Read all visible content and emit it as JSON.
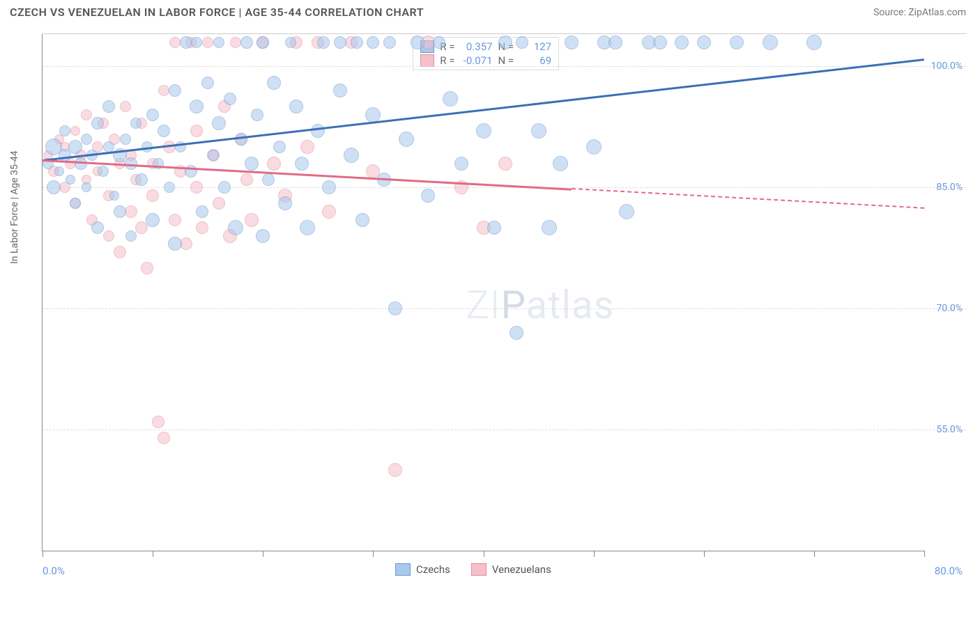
{
  "header": {
    "title": "CZECH VS VENEZUELAN IN LABOR FORCE | AGE 35-44 CORRELATION CHART",
    "source": "Source: ZipAtlas.com"
  },
  "chart": {
    "type": "scatter",
    "y_axis_title": "In Labor Force | Age 35-44",
    "xlim": [
      0,
      80
    ],
    "ylim": [
      40,
      104
    ],
    "x_tick_positions": [
      0,
      10,
      20,
      30,
      40,
      50,
      60,
      70,
      80
    ],
    "x_label_min": "0.0%",
    "x_label_max": "80.0%",
    "y_gridlines": [
      {
        "value": 100,
        "label": "100.0%"
      },
      {
        "value": 85,
        "label": "85.0%"
      },
      {
        "value": 70,
        "label": "70.0%"
      },
      {
        "value": 55,
        "label": "55.0%"
      }
    ],
    "background_color": "#ffffff",
    "grid_color": "#dddddd",
    "axis_color": "#888888",
    "tick_label_color": "#6699dd",
    "watermark": "ZIPatlas",
    "series": [
      {
        "name": "Czechs",
        "fill": "#a8c8ec",
        "stroke": "#6b9bd1",
        "opacity": 0.55,
        "regression": {
          "r": "0.357",
          "n": "127",
          "x1": 0,
          "y1": 88.5,
          "x2": 80,
          "y2": 101,
          "solid_to_x": 80,
          "color": "#3b6fb5"
        },
        "points": [
          {
            "x": 0.5,
            "y": 88,
            "r": 8
          },
          {
            "x": 1,
            "y": 85,
            "r": 10
          },
          {
            "x": 1,
            "y": 90,
            "r": 12
          },
          {
            "x": 1.5,
            "y": 87,
            "r": 7
          },
          {
            "x": 2,
            "y": 89,
            "r": 9
          },
          {
            "x": 2,
            "y": 92,
            "r": 8
          },
          {
            "x": 2.5,
            "y": 86,
            "r": 7
          },
          {
            "x": 3,
            "y": 90,
            "r": 10
          },
          {
            "x": 3,
            "y": 83,
            "r": 8
          },
          {
            "x": 3.5,
            "y": 88,
            "r": 9
          },
          {
            "x": 4,
            "y": 91,
            "r": 8
          },
          {
            "x": 4,
            "y": 85,
            "r": 7
          },
          {
            "x": 4.5,
            "y": 89,
            "r": 8
          },
          {
            "x": 5,
            "y": 93,
            "r": 9
          },
          {
            "x": 5,
            "y": 80,
            "r": 9
          },
          {
            "x": 5.5,
            "y": 87,
            "r": 8
          },
          {
            "x": 6,
            "y": 90,
            "r": 8
          },
          {
            "x": 6,
            "y": 95,
            "r": 9
          },
          {
            "x": 6.5,
            "y": 84,
            "r": 7
          },
          {
            "x": 7,
            "y": 89,
            "r": 10
          },
          {
            "x": 7,
            "y": 82,
            "r": 9
          },
          {
            "x": 7.5,
            "y": 91,
            "r": 8
          },
          {
            "x": 8,
            "y": 88,
            "r": 9
          },
          {
            "x": 8,
            "y": 79,
            "r": 8
          },
          {
            "x": 8.5,
            "y": 93,
            "r": 8
          },
          {
            "x": 9,
            "y": 86,
            "r": 9
          },
          {
            "x": 9.5,
            "y": 90,
            "r": 8
          },
          {
            "x": 10,
            "y": 94,
            "r": 9
          },
          {
            "x": 10,
            "y": 81,
            "r": 10
          },
          {
            "x": 10.5,
            "y": 88,
            "r": 8
          },
          {
            "x": 11,
            "y": 92,
            "r": 9
          },
          {
            "x": 11.5,
            "y": 85,
            "r": 8
          },
          {
            "x": 12,
            "y": 97,
            "r": 9
          },
          {
            "x": 12,
            "y": 78,
            "r": 10
          },
          {
            "x": 12.5,
            "y": 90,
            "r": 8
          },
          {
            "x": 13,
            "y": 103,
            "r": 9
          },
          {
            "x": 13.5,
            "y": 87,
            "r": 9
          },
          {
            "x": 14,
            "y": 95,
            "r": 10
          },
          {
            "x": 14,
            "y": 103,
            "r": 8
          },
          {
            "x": 14.5,
            "y": 82,
            "r": 9
          },
          {
            "x": 15,
            "y": 98,
            "r": 9
          },
          {
            "x": 15.5,
            "y": 89,
            "r": 8
          },
          {
            "x": 16,
            "y": 93,
            "r": 10
          },
          {
            "x": 16,
            "y": 103,
            "r": 8
          },
          {
            "x": 16.5,
            "y": 85,
            "r": 9
          },
          {
            "x": 17,
            "y": 96,
            "r": 9
          },
          {
            "x": 17.5,
            "y": 80,
            "r": 11
          },
          {
            "x": 18,
            "y": 91,
            "r": 9
          },
          {
            "x": 18.5,
            "y": 103,
            "r": 9
          },
          {
            "x": 19,
            "y": 88,
            "r": 10
          },
          {
            "x": 19.5,
            "y": 94,
            "r": 9
          },
          {
            "x": 20,
            "y": 79,
            "r": 10
          },
          {
            "x": 20,
            "y": 103,
            "r": 9
          },
          {
            "x": 20.5,
            "y": 86,
            "r": 9
          },
          {
            "x": 21,
            "y": 98,
            "r": 10
          },
          {
            "x": 21.5,
            "y": 90,
            "r": 9
          },
          {
            "x": 22,
            "y": 83,
            "r": 10
          },
          {
            "x": 22.5,
            "y": 103,
            "r": 8
          },
          {
            "x": 23,
            "y": 95,
            "r": 10
          },
          {
            "x": 23.5,
            "y": 88,
            "r": 10
          },
          {
            "x": 24,
            "y": 80,
            "r": 11
          },
          {
            "x": 25,
            "y": 92,
            "r": 10
          },
          {
            "x": 25.5,
            "y": 103,
            "r": 9
          },
          {
            "x": 26,
            "y": 85,
            "r": 10
          },
          {
            "x": 27,
            "y": 97,
            "r": 10
          },
          {
            "x": 27,
            "y": 103,
            "r": 9
          },
          {
            "x": 28,
            "y": 89,
            "r": 11
          },
          {
            "x": 28.5,
            "y": 103,
            "r": 9
          },
          {
            "x": 29,
            "y": 81,
            "r": 10
          },
          {
            "x": 30,
            "y": 94,
            "r": 11
          },
          {
            "x": 30,
            "y": 103,
            "r": 9
          },
          {
            "x": 31,
            "y": 86,
            "r": 10
          },
          {
            "x": 31.5,
            "y": 103,
            "r": 9
          },
          {
            "x": 32,
            "y": 70,
            "r": 10
          },
          {
            "x": 33,
            "y": 91,
            "r": 11
          },
          {
            "x": 34,
            "y": 103,
            "r": 10
          },
          {
            "x": 35,
            "y": 84,
            "r": 10
          },
          {
            "x": 36,
            "y": 103,
            "r": 9
          },
          {
            "x": 37,
            "y": 96,
            "r": 11
          },
          {
            "x": 38,
            "y": 88,
            "r": 10
          },
          {
            "x": 40,
            "y": 92,
            "r": 11
          },
          {
            "x": 41,
            "y": 80,
            "r": 10
          },
          {
            "x": 42,
            "y": 103,
            "r": 10
          },
          {
            "x": 43,
            "y": 67,
            "r": 10
          },
          {
            "x": 43.5,
            "y": 103,
            "r": 9
          },
          {
            "x": 45,
            "y": 92,
            "r": 11
          },
          {
            "x": 46,
            "y": 80,
            "r": 11
          },
          {
            "x": 47,
            "y": 88,
            "r": 11
          },
          {
            "x": 48,
            "y": 103,
            "r": 10
          },
          {
            "x": 50,
            "y": 90,
            "r": 11
          },
          {
            "x": 51,
            "y": 103,
            "r": 10
          },
          {
            "x": 52,
            "y": 103,
            "r": 10
          },
          {
            "x": 53,
            "y": 82,
            "r": 11
          },
          {
            "x": 55,
            "y": 103,
            "r": 10
          },
          {
            "x": 56,
            "y": 103,
            "r": 10
          },
          {
            "x": 58,
            "y": 103,
            "r": 10
          },
          {
            "x": 60,
            "y": 103,
            "r": 10
          },
          {
            "x": 63,
            "y": 103,
            "r": 10
          },
          {
            "x": 66,
            "y": 103,
            "r": 11
          },
          {
            "x": 70,
            "y": 103,
            "r": 11
          }
        ]
      },
      {
        "name": "Venezuelans",
        "fill": "#f5c0ca",
        "stroke": "#e58ba0",
        "opacity": 0.55,
        "regression": {
          "r": "-0.071",
          "n": "69",
          "x1": 0,
          "y1": 88.5,
          "x2": 80,
          "y2": 82.5,
          "solid_to_x": 48,
          "color": "#e06b85"
        },
        "points": [
          {
            "x": 0.5,
            "y": 89,
            "r": 7
          },
          {
            "x": 1,
            "y": 87,
            "r": 8
          },
          {
            "x": 1.5,
            "y": 91,
            "r": 7
          },
          {
            "x": 2,
            "y": 85,
            "r": 8
          },
          {
            "x": 2,
            "y": 90,
            "r": 7
          },
          {
            "x": 2.5,
            "y": 88,
            "r": 8
          },
          {
            "x": 3,
            "y": 92,
            "r": 7
          },
          {
            "x": 3,
            "y": 83,
            "r": 8
          },
          {
            "x": 3.5,
            "y": 89,
            "r": 8
          },
          {
            "x": 4,
            "y": 86,
            "r": 7
          },
          {
            "x": 4,
            "y": 94,
            "r": 8
          },
          {
            "x": 4.5,
            "y": 81,
            "r": 8
          },
          {
            "x": 5,
            "y": 90,
            "r": 8
          },
          {
            "x": 5,
            "y": 87,
            "r": 7
          },
          {
            "x": 5.5,
            "y": 93,
            "r": 8
          },
          {
            "x": 6,
            "y": 84,
            "r": 8
          },
          {
            "x": 6,
            "y": 79,
            "r": 8
          },
          {
            "x": 6.5,
            "y": 91,
            "r": 8
          },
          {
            "x": 7,
            "y": 88,
            "r": 8
          },
          {
            "x": 7,
            "y": 77,
            "r": 9
          },
          {
            "x": 7.5,
            "y": 95,
            "r": 8
          },
          {
            "x": 8,
            "y": 82,
            "r": 9
          },
          {
            "x": 8,
            "y": 89,
            "r": 8
          },
          {
            "x": 8.5,
            "y": 86,
            "r": 8
          },
          {
            "x": 9,
            "y": 80,
            "r": 9
          },
          {
            "x": 9,
            "y": 93,
            "r": 8
          },
          {
            "x": 9.5,
            "y": 75,
            "r": 9
          },
          {
            "x": 10,
            "y": 88,
            "r": 8
          },
          {
            "x": 10,
            "y": 84,
            "r": 9
          },
          {
            "x": 10.5,
            "y": 56,
            "r": 9
          },
          {
            "x": 11,
            "y": 97,
            "r": 8
          },
          {
            "x": 11,
            "y": 54,
            "r": 9
          },
          {
            "x": 11.5,
            "y": 90,
            "r": 9
          },
          {
            "x": 12,
            "y": 81,
            "r": 9
          },
          {
            "x": 12,
            "y": 103,
            "r": 8
          },
          {
            "x": 12.5,
            "y": 87,
            "r": 9
          },
          {
            "x": 13,
            "y": 78,
            "r": 9
          },
          {
            "x": 13.5,
            "y": 103,
            "r": 8
          },
          {
            "x": 14,
            "y": 92,
            "r": 9
          },
          {
            "x": 14,
            "y": 85,
            "r": 9
          },
          {
            "x": 14.5,
            "y": 80,
            "r": 9
          },
          {
            "x": 15,
            "y": 103,
            "r": 8
          },
          {
            "x": 15.5,
            "y": 89,
            "r": 9
          },
          {
            "x": 16,
            "y": 83,
            "r": 9
          },
          {
            "x": 16.5,
            "y": 95,
            "r": 9
          },
          {
            "x": 17,
            "y": 79,
            "r": 10
          },
          {
            "x": 17.5,
            "y": 103,
            "r": 8
          },
          {
            "x": 18,
            "y": 91,
            "r": 9
          },
          {
            "x": 18.5,
            "y": 86,
            "r": 9
          },
          {
            "x": 19,
            "y": 81,
            "r": 10
          },
          {
            "x": 20,
            "y": 103,
            "r": 9
          },
          {
            "x": 21,
            "y": 88,
            "r": 10
          },
          {
            "x": 22,
            "y": 84,
            "r": 10
          },
          {
            "x": 23,
            "y": 103,
            "r": 9
          },
          {
            "x": 24,
            "y": 90,
            "r": 10
          },
          {
            "x": 25,
            "y": 103,
            "r": 9
          },
          {
            "x": 26,
            "y": 82,
            "r": 10
          },
          {
            "x": 28,
            "y": 103,
            "r": 9
          },
          {
            "x": 30,
            "y": 87,
            "r": 10
          },
          {
            "x": 32,
            "y": 50,
            "r": 10
          },
          {
            "x": 35,
            "y": 103,
            "r": 10
          },
          {
            "x": 38,
            "y": 85,
            "r": 10
          },
          {
            "x": 40,
            "y": 80,
            "r": 10
          },
          {
            "x": 42,
            "y": 88,
            "r": 10
          }
        ]
      }
    ],
    "stats_box": {
      "rows": [
        {
          "swatch_fill": "#a8c8ec",
          "swatch_stroke": "#6b9bd1",
          "r_label": "R =",
          "r_val": "0.357",
          "n_label": "N =",
          "n_val": "127"
        },
        {
          "swatch_fill": "#f5c0ca",
          "swatch_stroke": "#e58ba0",
          "r_label": "R =",
          "r_val": "-0.071",
          "n_label": "N =",
          "n_val": "69"
        }
      ]
    },
    "bottom_legend": [
      {
        "swatch_fill": "#a8c8ec",
        "swatch_stroke": "#6b9bd1",
        "label": "Czechs"
      },
      {
        "swatch_fill": "#f5c0ca",
        "swatch_stroke": "#e58ba0",
        "label": "Venezuelans"
      }
    ]
  }
}
